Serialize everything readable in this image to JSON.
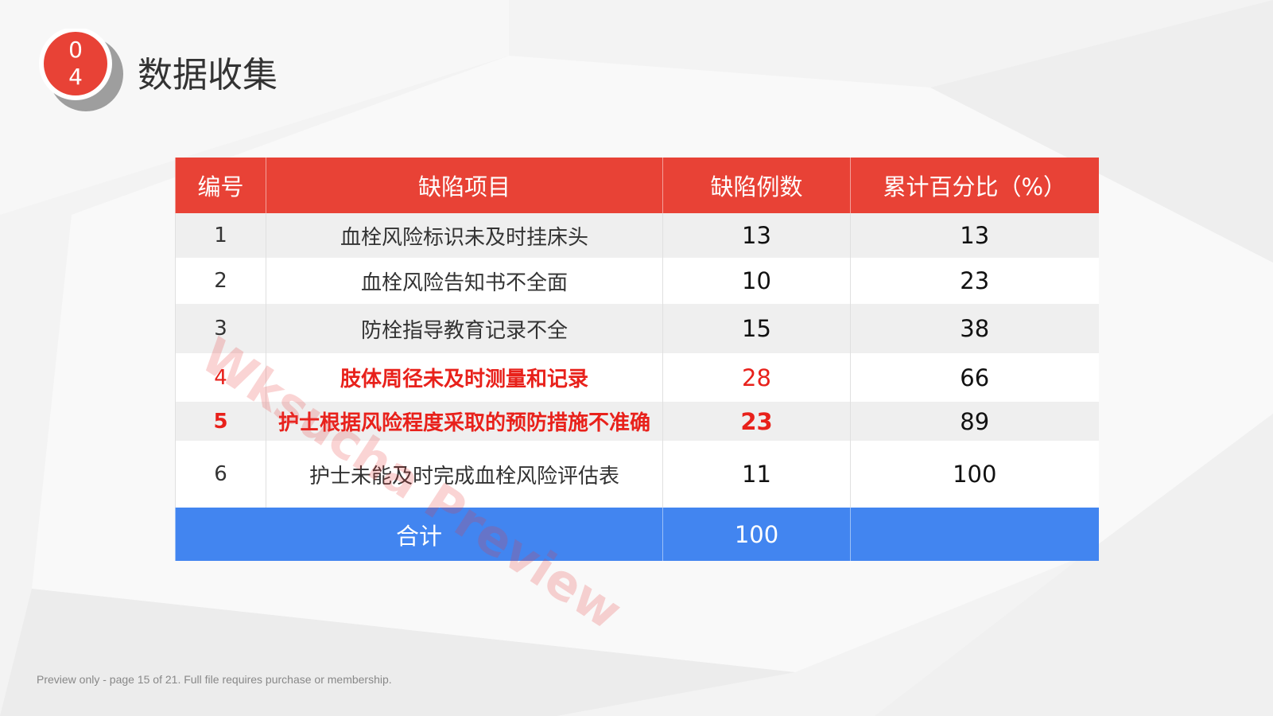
{
  "badge": {
    "digits": [
      0,
      4
    ]
  },
  "header": {
    "title": "数据收集"
  },
  "table": {
    "columns": [
      "编号",
      "缺陷项目",
      "缺陷例数",
      "累计百分比（%）"
    ],
    "rows": [
      [
        1,
        "血栓风险标识未及时挂床头",
        13,
        13
      ],
      [
        2,
        "血栓风险告知书不全面",
        10,
        23
      ],
      [
        3,
        "防栓指导教育记录不全",
        15,
        38
      ],
      [
        4,
        "肢体周径未及时测量和记录",
        28,
        66
      ],
      [
        5,
        "护士根据风险程度采取的预防措施不准确",
        23,
        89
      ],
      [
        6,
        "护士未能及时完成血栓风险评估表",
        11,
        100
      ]
    ],
    "total": {
      "label": "合计",
      "value": 100
    }
  },
  "watermark": "Wksucha Preview",
  "footer": "Preview only - page 15 of 21. Full file requires purchase or membership."
}
